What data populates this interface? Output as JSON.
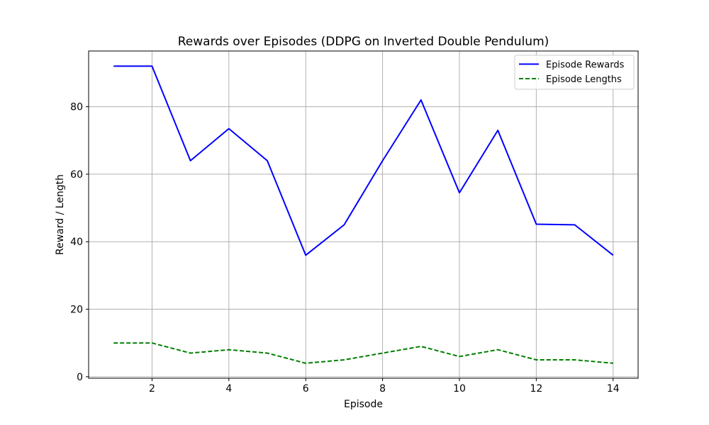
{
  "chart_data": {
    "type": "line",
    "title": "Rewards over Episodes (DDPG on Inverted Double Pendulum)",
    "xlabel": "Episode",
    "ylabel": "Reward / Length",
    "xlim": [
      0.35,
      14.65
    ],
    "ylim": [
      -0.45,
      96.5
    ],
    "xticks": [
      2,
      4,
      6,
      8,
      10,
      12,
      14
    ],
    "yticks": [
      0,
      20,
      40,
      60,
      80
    ],
    "grid": true,
    "legend_position": "top-right",
    "x": [
      1,
      2,
      3,
      4,
      5,
      6,
      7,
      8,
      9,
      10,
      11,
      12,
      13,
      14
    ],
    "series": [
      {
        "name": "Episode Rewards",
        "color": "#0000ff",
        "style": "solid",
        "values": [
          92,
          92,
          64,
          73.5,
          64,
          36,
          45,
          64,
          82,
          54.5,
          73,
          45.2,
          45,
          36
        ]
      },
      {
        "name": "Episode Lengths",
        "color": "#008000",
        "style": "dashed",
        "values": [
          10,
          10,
          7,
          8,
          7,
          4,
          5,
          7,
          9,
          6,
          8,
          5,
          5,
          4
        ]
      }
    ]
  }
}
